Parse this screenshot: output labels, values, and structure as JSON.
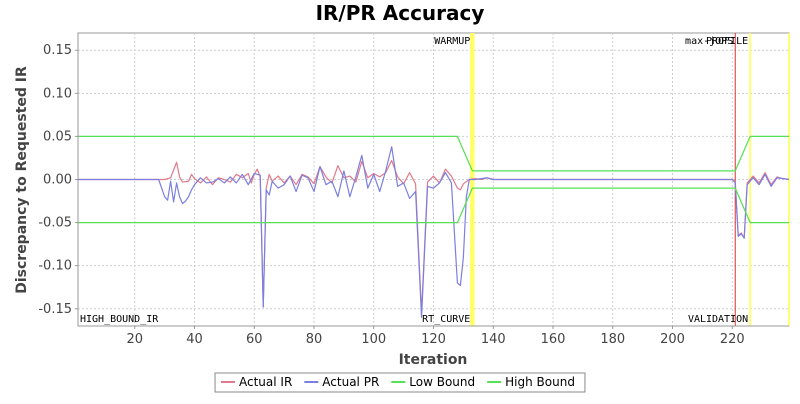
{
  "chart_data": {
    "type": "line",
    "title": "IR/PR Accuracy",
    "xlabel": "Iteration",
    "ylabel": "Discrepancy to Requested IR",
    "xlim": [
      1,
      239
    ],
    "ylim": [
      -0.17,
      0.17
    ],
    "x_ticks": [
      20,
      40,
      60,
      80,
      100,
      120,
      140,
      160,
      180,
      200,
      220
    ],
    "y_ticks": [
      0.15,
      0.1,
      0.05,
      0.0,
      -0.05,
      -0.1,
      -0.15
    ],
    "y_tick_labels": [
      "0.15",
      "0.10",
      "0.05",
      "0.00",
      "-0.05",
      "-0.10",
      "-0.15"
    ],
    "grid": true,
    "legend_position": "bottom",
    "series": [
      {
        "name": "Actual IR",
        "color": "#e07a8c",
        "points": [
          [
            1,
            0
          ],
          [
            28,
            0
          ],
          [
            30,
            0
          ],
          [
            32,
            0.002
          ],
          [
            34,
            0.02
          ],
          [
            35,
            0.003
          ],
          [
            36,
            -0.003
          ],
          [
            38,
            -0.002
          ],
          [
            39,
            0.006
          ],
          [
            40,
            0.001
          ],
          [
            42,
            -0.004
          ],
          [
            44,
            0.003
          ],
          [
            46,
            -0.006
          ],
          [
            48,
            0.002
          ],
          [
            50,
            0
          ],
          [
            52,
            -0.003
          ],
          [
            54,
            0.006
          ],
          [
            56,
            0.002
          ],
          [
            58,
            0.007
          ],
          [
            59,
            -0.004
          ],
          [
            60,
            0.006
          ],
          [
            61,
            0.012
          ],
          [
            62,
            0.003
          ],
          [
            63,
            -0.148
          ],
          [
            64,
            -0.01
          ],
          [
            65,
            0.006
          ],
          [
            66,
            -0.002
          ],
          [
            68,
            0.004
          ],
          [
            70,
            -0.004
          ],
          [
            72,
            0.004
          ],
          [
            74,
            -0.006
          ],
          [
            76,
            0.006
          ],
          [
            78,
            0.003
          ],
          [
            80,
            -0.005
          ],
          [
            82,
            0.015
          ],
          [
            84,
            0.003
          ],
          [
            86,
            -0.004
          ],
          [
            88,
            0.016
          ],
          [
            90,
            0.002
          ],
          [
            92,
            0.004
          ],
          [
            94,
            -0.003
          ],
          [
            96,
            0.021
          ],
          [
            98,
            0.002
          ],
          [
            100,
            0.007
          ],
          [
            102,
            0.003
          ],
          [
            104,
            0.008
          ],
          [
            106,
            0.022
          ],
          [
            108,
            0.003
          ],
          [
            110,
            -0.005
          ],
          [
            112,
            0.008
          ],
          [
            114,
            -0.005
          ],
          [
            116,
            -0.155
          ],
          [
            118,
            -0.003
          ],
          [
            120,
            0.004
          ],
          [
            122,
            -0.004
          ],
          [
            124,
            0.012
          ],
          [
            126,
            0.004
          ],
          [
            128,
            -0.01
          ],
          [
            129,
            -0.012
          ],
          [
            130,
            -0.005
          ],
          [
            132,
            0
          ],
          [
            134,
            0.001
          ],
          [
            136,
            0
          ],
          [
            138,
            0.002
          ],
          [
            140,
            0
          ],
          [
            150,
            0
          ],
          [
            160,
            0
          ],
          [
            170,
            0
          ],
          [
            180,
            0
          ],
          [
            190,
            0
          ],
          [
            200,
            0
          ],
          [
            210,
            0
          ],
          [
            220,
            0
          ],
          [
            221,
            -0.002
          ],
          [
            222,
            -0.065
          ],
          [
            223,
            -0.062
          ],
          [
            224,
            -0.068
          ],
          [
            225,
            -0.004
          ],
          [
            227,
            0.004
          ],
          [
            229,
            -0.004
          ],
          [
            231,
            0.008
          ],
          [
            233,
            -0.006
          ],
          [
            235,
            0.003
          ],
          [
            237,
            0.001
          ],
          [
            239,
            0
          ]
        ]
      },
      {
        "name": "Actual PR",
        "color": "#7b7fe0",
        "points": [
          [
            1,
            0
          ],
          [
            28,
            0
          ],
          [
            30,
            -0.02
          ],
          [
            31,
            -0.024
          ],
          [
            32,
            -0.002
          ],
          [
            33,
            -0.026
          ],
          [
            34,
            -0.004
          ],
          [
            35,
            -0.02
          ],
          [
            36,
            -0.028
          ],
          [
            37,
            -0.025
          ],
          [
            38,
            -0.02
          ],
          [
            39,
            -0.012
          ],
          [
            40,
            -0.006
          ],
          [
            42,
            0.002
          ],
          [
            44,
            -0.004
          ],
          [
            46,
            -0.003
          ],
          [
            48,
            0.001
          ],
          [
            50,
            -0.004
          ],
          [
            52,
            0.003
          ],
          [
            54,
            -0.004
          ],
          [
            56,
            0.006
          ],
          [
            58,
            -0.006
          ],
          [
            60,
            0.007
          ],
          [
            62,
            0.005
          ],
          [
            63,
            -0.148
          ],
          [
            64,
            -0.012
          ],
          [
            65,
            -0.018
          ],
          [
            66,
            -0.002
          ],
          [
            68,
            -0.01
          ],
          [
            70,
            -0.006
          ],
          [
            72,
            0.004
          ],
          [
            74,
            -0.014
          ],
          [
            76,
            0.005
          ],
          [
            78,
            0.002
          ],
          [
            80,
            -0.014
          ],
          [
            82,
            0.015
          ],
          [
            84,
            -0.006
          ],
          [
            86,
            -0.002
          ],
          [
            88,
            -0.02
          ],
          [
            90,
            0.01
          ],
          [
            92,
            -0.02
          ],
          [
            94,
            0.003
          ],
          [
            96,
            0.028
          ],
          [
            98,
            -0.01
          ],
          [
            100,
            0.006
          ],
          [
            102,
            -0.014
          ],
          [
            104,
            0.01
          ],
          [
            106,
            0.038
          ],
          [
            108,
            -0.008
          ],
          [
            110,
            -0.004
          ],
          [
            112,
            -0.022
          ],
          [
            114,
            -0.014
          ],
          [
            116,
            -0.16
          ],
          [
            118,
            -0.008
          ],
          [
            120,
            -0.01
          ],
          [
            122,
            -0.004
          ],
          [
            124,
            0.008
          ],
          [
            126,
            -0.004
          ],
          [
            128,
            -0.12
          ],
          [
            129,
            -0.123
          ],
          [
            130,
            -0.09
          ],
          [
            131,
            -0.02
          ],
          [
            132,
            0
          ],
          [
            134,
            0
          ],
          [
            138,
            0.002
          ],
          [
            140,
            0
          ],
          [
            150,
            0
          ],
          [
            160,
            0
          ],
          [
            170,
            0
          ],
          [
            180,
            0
          ],
          [
            190,
            0
          ],
          [
            200,
            0
          ],
          [
            210,
            0
          ],
          [
            220,
            0
          ],
          [
            221,
            -0.004
          ],
          [
            222,
            -0.066
          ],
          [
            223,
            -0.063
          ],
          [
            224,
            -0.068
          ],
          [
            225,
            -0.006
          ],
          [
            227,
            0.002
          ],
          [
            229,
            -0.006
          ],
          [
            231,
            0.006
          ],
          [
            233,
            -0.008
          ],
          [
            235,
            0.002
          ],
          [
            237,
            0.001
          ],
          [
            239,
            0
          ]
        ]
      },
      {
        "name": "Low Bound",
        "color": "#55e055",
        "points": [
          [
            1,
            -0.05
          ],
          [
            128,
            -0.05
          ],
          [
            133,
            -0.01
          ],
          [
            221,
            -0.01
          ],
          [
            226,
            -0.05
          ],
          [
            239,
            -0.05
          ]
        ]
      },
      {
        "name": "High Bound",
        "color": "#55e055",
        "points": [
          [
            1,
            0.05
          ],
          [
            128,
            0.05
          ],
          [
            133,
            0.01
          ],
          [
            221,
            0.01
          ],
          [
            226,
            0.05
          ],
          [
            239,
            0.05
          ]
        ]
      }
    ],
    "markers": [
      {
        "x": 133,
        "color": "#ffff66",
        "width_units": 1.5,
        "top_label": "WARMUP",
        "bottom_label": "RT_CURVE"
      },
      {
        "x": 221,
        "color": "#e03030",
        "width_units": 0.3,
        "top_label": "max-jOPS",
        "bottom_label": ""
      },
      {
        "x": 226,
        "color": "#ffff66",
        "width_units": 0.6,
        "top_label": "PROFILE",
        "bottom_label": "VALIDATION"
      },
      {
        "x": 239,
        "color": "#ffff66",
        "width_units": 0.6,
        "top_label": "",
        "bottom_label": ""
      }
    ],
    "corner_label": "HIGH_BOUND_IR"
  }
}
